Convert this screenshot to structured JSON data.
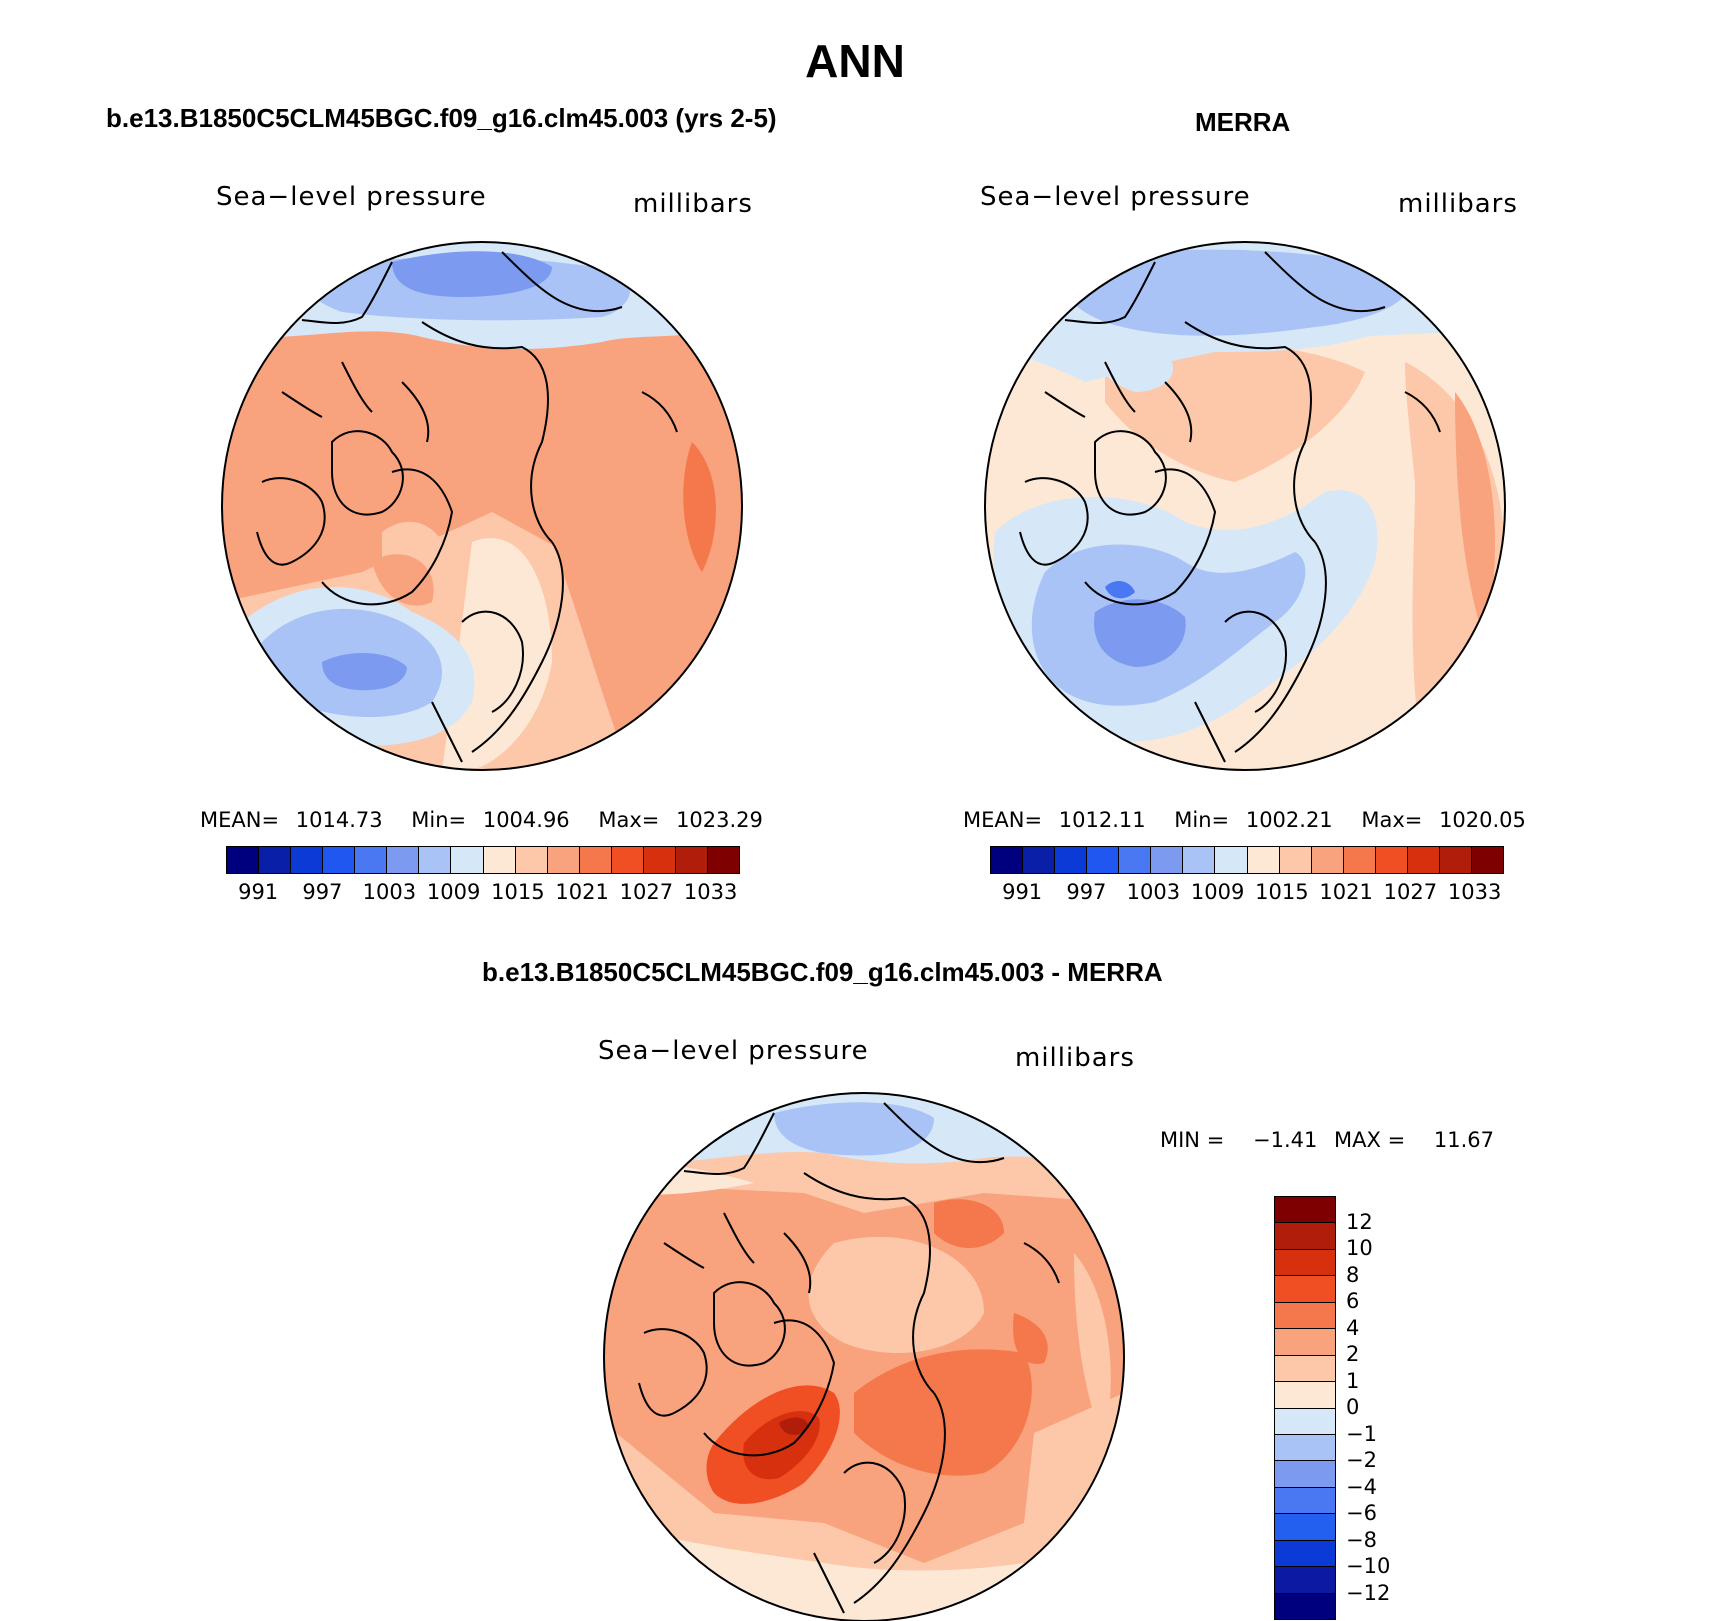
{
  "page": {
    "title": "ANN"
  },
  "panels": {
    "model": {
      "title": "b.e13.B1850C5CLM45BGC.f09_g16.clm45.003 (yrs 2-5)",
      "variable": "Sea−level pressure",
      "units": "millibars",
      "stats": {
        "mean_label": "MEAN=",
        "mean": "1014.73",
        "min_label": "Min=",
        "min": "1004.96",
        "max_label": "Max=",
        "max": "1023.29"
      }
    },
    "obs": {
      "title": "MERRA",
      "variable": "Sea−level pressure",
      "units": "millibars",
      "stats": {
        "mean_label": "MEAN=",
        "mean": "1012.11",
        "min_label": "Min=",
        "min": "1002.21",
        "max_label": "Max=",
        "max": "1020.05"
      }
    },
    "diff": {
      "title": "b.e13.B1850C5CLM45BGC.f09_g16.clm45.003 - MERRA",
      "variable": "Sea−level pressure",
      "units": "millibars",
      "stats": {
        "min_label": "MIN =",
        "min": "−1.41",
        "max_label": "MAX =",
        "max": "11.67"
      }
    }
  },
  "colorbars": {
    "field": {
      "colors": [
        "#00007f",
        "#0a1fa8",
        "#0b3ad6",
        "#1f57f0",
        "#4a78f2",
        "#7c9bf0",
        "#aac3f7",
        "#d6e7f8",
        "#fde8d6",
        "#fcc8a9",
        "#f9a27e",
        "#f5774c",
        "#f04e23",
        "#d7300f",
        "#b01d0a",
        "#7f0000"
      ],
      "ticks": [
        "991",
        "997",
        "1003",
        "1009",
        "1015",
        "1021",
        "1027",
        "1033"
      ]
    },
    "difference": {
      "colors": [
        "#00007f",
        "#0b19a3",
        "#0b3ad6",
        "#2460f0",
        "#4a78f2",
        "#7c9bf0",
        "#aac3f7",
        "#d6e7f8",
        "#fde8d6",
        "#fcc8a9",
        "#f9a27e",
        "#f5774c",
        "#f04e23",
        "#d7300f",
        "#b01d0a",
        "#7f0000"
      ],
      "ticks": [
        "12",
        "10",
        "8",
        "6",
        "4",
        "2",
        "1",
        "0",
        "−1",
        "−2",
        "−4",
        "−6",
        "−8",
        "−10",
        "−12"
      ]
    }
  }
}
